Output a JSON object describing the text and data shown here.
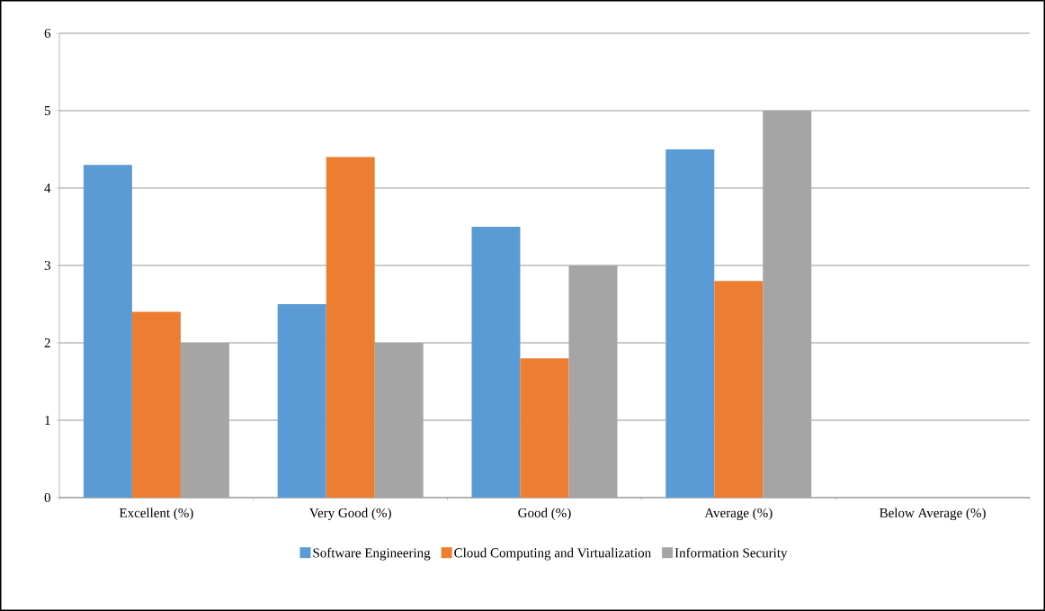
{
  "chart_data": {
    "type": "bar",
    "categories": [
      "Excellent (%)",
      "Very Good (%)",
      "Good (%)",
      "Average (%)",
      "Below Average (%)"
    ],
    "series": [
      {
        "name": "Software Engineering",
        "color": "#5b9bd5",
        "values": [
          4.3,
          2.5,
          3.5,
          4.5,
          0
        ]
      },
      {
        "name": "Cloud Computing and Virtualization",
        "color": "#ed7d31",
        "values": [
          2.4,
          4.4,
          1.8,
          2.8,
          0
        ]
      },
      {
        "name": "Information Security",
        "color": "#a5a5a5",
        "values": [
          2,
          2,
          3,
          5,
          0
        ]
      }
    ],
    "ylim": [
      0,
      6
    ],
    "yticks": [
      0,
      1,
      2,
      3,
      4,
      5,
      6
    ],
    "grid": "y",
    "legend": "bottom"
  }
}
